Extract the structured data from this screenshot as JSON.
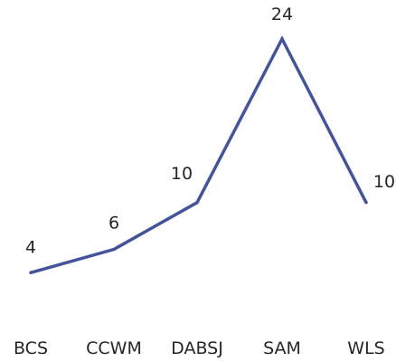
{
  "chart_data": {
    "type": "line",
    "categories": [
      "BCS",
      "CCWM",
      "DABSJ",
      "SAM",
      "WLS"
    ],
    "series": [
      {
        "values": [
          4,
          6,
          10,
          24,
          10
        ],
        "color": "#44549a"
      }
    ],
    "data_labels": true,
    "grid": false,
    "legend": "none",
    "ylim": [
      0,
      24
    ]
  }
}
